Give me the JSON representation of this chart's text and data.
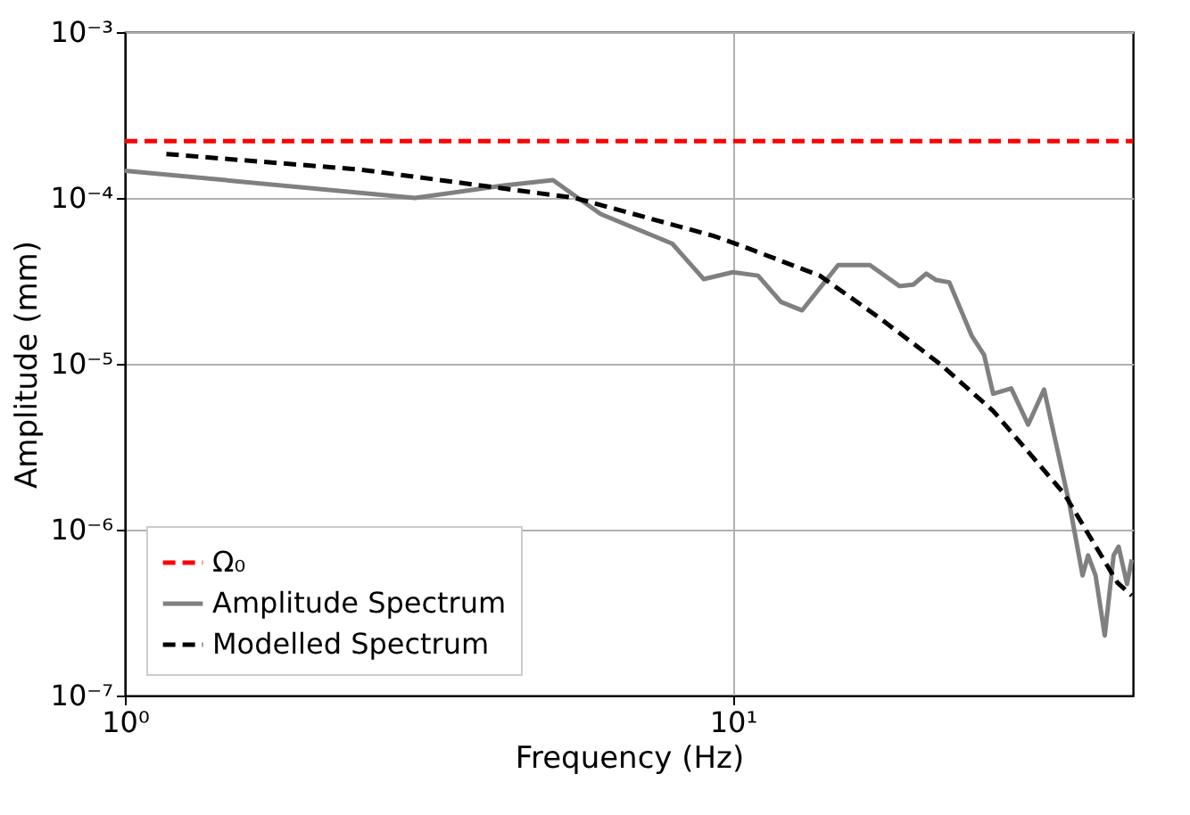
{
  "chart_data": {
    "type": "line",
    "xlabel": "Frequency (Hz)",
    "ylabel": "Amplitude (mm)",
    "log": "xy",
    "grid": true,
    "legend": "bottom left",
    "marker": "none",
    "xlim": [
      1,
      45.5
    ],
    "xticks": [
      {
        "value": 1,
        "label": "10⁰"
      },
      {
        "value": 10,
        "label": "10¹"
      }
    ],
    "ylim": [
      1e-07,
      0.001
    ],
    "yticks": [
      {
        "value": 1e-07,
        "label": "10⁻⁷"
      },
      {
        "value": 1e-06,
        "label": "10⁻⁶"
      },
      {
        "value": 1e-05,
        "label": "10⁻⁵"
      },
      {
        "value": 0.0001,
        "label": "10⁻⁴"
      },
      {
        "value": 0.001,
        "label": "10⁻³"
      }
    ],
    "series": [
      {
        "name": "Ω₀",
        "color": "#ff0000",
        "line_style": "dashed",
        "x": [
          1,
          45.5
        ],
        "values": [
          0.00022,
          0.00022
        ]
      },
      {
        "name": "Amplitude Spectrum",
        "color": "#808080",
        "line_style": "solid",
        "x": [
          1,
          3,
          4.2,
          5.06,
          6.06,
          7.95,
          8.96,
          10,
          11,
          12,
          13,
          14.9,
          16.8,
          18.8,
          19.8,
          20.8,
          21.6,
          22.7,
          24.7,
          25.9,
          26.8,
          28.7,
          30.6,
          32.5,
          34.6,
          35.8,
          37.6,
          38.4,
          39.5,
          40.9,
          42.3,
          43.1,
          44.5,
          45.3
        ],
        "values": [
          0.000146,
          0.0001,
          0.000119,
          0.000128,
          8e-05,
          5.3e-05,
          3.24e-05,
          3.57e-05,
          3.4e-05,
          2.36e-05,
          2.1e-05,
          3.94e-05,
          3.94e-05,
          2.94e-05,
          3e-05,
          3.5e-05,
          3.2e-05,
          3.1e-05,
          1.48e-05,
          1.13e-05,
          6.6e-06,
          7.1e-06,
          4.3e-06,
          7e-06,
          2.48e-06,
          1.41e-06,
          5.3e-07,
          7e-07,
          5.3e-07,
          2.3e-07,
          7e-07,
          7.9e-07,
          4.7e-07,
          6.6e-07
        ]
      },
      {
        "name": "Modelled Spectrum",
        "color": "#000000",
        "line_style": "dashed",
        "x": [
          1.17,
          2.45,
          5.5,
          9.3,
          10.4,
          13.9,
          17.4,
          21.9,
          26.8,
          35.1,
          42.9,
          45.3
        ],
        "values": [
          0.000184,
          0.000148,
          0.0001,
          5.9e-05,
          5.1e-05,
          3.4e-05,
          1.9e-05,
          1e-05,
          5.2e-06,
          1.64e-06,
          4.8e-07,
          4e-07
        ]
      }
    ]
  }
}
